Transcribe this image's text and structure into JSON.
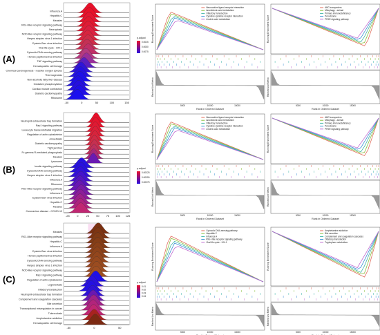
{
  "panels": [
    {
      "letter": "(A)",
      "ridge": {
        "pathways": [
          "Influenza A",
          "Hepatitis C",
          "Measles",
          "RIG-I-like receptor signaling pathway",
          "Necroptosis",
          "NOD-like receptor signaling pathway",
          "Herpes simplex virus 1 infection",
          "Epstein-Barr virus infection",
          "Viral life cycle - HIV-1",
          "Cytosolic DNA-sensing pathway",
          "Human papillomavirus infection",
          "TNF signaling pathway",
          "Hematopoietic cell lineage",
          "Chemical carcinogenesis - reactive oxygen species",
          "Thermogenesis",
          "Non-alcoholic fatty liver disease",
          "Oxidative phosphorylation",
          "Cardiac muscle contraction",
          "Diabetic cardiomyopathy",
          "Ribosome"
        ],
        "peaks": [
          28,
          26,
          25,
          23,
          22,
          24,
          20,
          21,
          18,
          22,
          14,
          16,
          8,
          -2,
          -4,
          -6,
          -12,
          -10,
          -8,
          -14
        ],
        "colors": [
          "#e8102a",
          "#e81028",
          "#e51530",
          "#e2182e",
          "#df1c35",
          "#dc2040",
          "#d7253f",
          "#cf2c48",
          "#c43055",
          "#c02f66",
          "#b43a80",
          "#9a2f9a",
          "#5a1fbf",
          "#2f15d8",
          "#2312e0",
          "#1c10e8",
          "#1f10e4",
          "#2610de",
          "#1f0fe6",
          "#1a0fee"
        ],
        "ticks": [
          "-50",
          "0",
          "50",
          "100",
          "150"
        ],
        "legend_title": "p.adjust",
        "legend_labels": [
          "0.0025",
          "0.0050",
          "0.0075"
        ]
      },
      "gsea1": {
        "legend": [
          "Neuroactive ligand-receptor interaction",
          "Arachidonic acid metabolism",
          "Olfactory transduction",
          "Cytokine-cytokine receptor interaction",
          "Linoleic acid metabolism"
        ],
        "xlabel": "Rank in Ordered Dataset",
        "ylabel": "Running Enrichment Score",
        "ylabel2": "Ranked List Metric",
        "xticks": [
          "5000",
          "10000",
          "15000"
        ]
      },
      "gsea2": {
        "legend": [
          "ABC transporters",
          "Mitophagy - animal",
          "Primary immunodeficiency",
          "Peroxisome",
          "PPAR signaling pathway"
        ],
        "xlabel": "Rank in Ordered Dataset",
        "ylabel": "Running Enrichment Score",
        "ylabel2": "Ranked List Metric",
        "xticks": [
          "5000",
          "10000",
          "15000"
        ]
      }
    },
    {
      "letter": "(B)",
      "ridge": {
        "pathways": [
          "Neutrophil extracellular trap formation",
          "Rap1 signaling pathway",
          "Leukocyte transendothelial migration",
          "Regulation of actin cytoskeleton",
          "Amoebiasis",
          "Diabetic cardiomyopathy",
          "Tight junction",
          "Fc gamma R-mediated phagocytosis",
          "Measles",
          "Lysosome",
          "Insulin signaling pathway",
          "Cytosolic DNA-sensing pathway",
          "Herpes simplex virus 1 infection",
          "Influenza A",
          "Ribosome",
          "RIG-I-like receptor signaling pathway",
          "Influenza A",
          "Epstein-Barr virus infection",
          "Hepatitis C",
          "Measles",
          "Coronavirus disease - COVID-19"
        ],
        "peaks": [
          46,
          45,
          44,
          44,
          43,
          42,
          42,
          41,
          40,
          39,
          10,
          8,
          7,
          8,
          6,
          5,
          9,
          7,
          6,
          7,
          8
        ],
        "colors": [
          "#e8102a",
          "#e5152e",
          "#e01a33",
          "#dc1f38",
          "#d8243c",
          "#d02a45",
          "#c63050",
          "#bd305e",
          "#a8287a",
          "#6a1ab2",
          "#2612e0",
          "#2810dd",
          "#3210d8",
          "#4512cc",
          "#5515c0",
          "#6817b3",
          "#7a1aa6",
          "#8c1d98",
          "#9e208b",
          "#ad237e",
          "#c02672"
        ],
        "ticks": [
          "-25",
          "0",
          "25",
          "50",
          "75",
          "100",
          "125"
        ],
        "legend_title": "p.adjust",
        "legend_labels": [
          "0.00025",
          "0.00050",
          "0.00075"
        ]
      },
      "gsea1": {
        "legend": [
          "Neuroactive ligand-receptor interaction",
          "Arachidonic acid metabolism",
          "Olfactory transduction",
          "Cytokine-cytokine receptor interaction",
          "Linoleic acid metabolism"
        ],
        "xlabel": "Rank in Ordered Dataset",
        "ylabel": "Running Enrichment Score",
        "ylabel2": "Ranked List Metric",
        "xticks": [
          "5000",
          "10000",
          "15000"
        ]
      },
      "gsea2": {
        "legend": [
          "ABC transporters",
          "Mitophagy - animal",
          "Primary immunodeficiency",
          "Peroxisome",
          "PPAR signaling pathway"
        ],
        "xlabel": "Rank in Ordered Dataset",
        "ylabel": "Running Enrichment Score",
        "ylabel2": "Ranked List Metric",
        "xticks": [
          "5000",
          "10000",
          "15000"
        ]
      }
    },
    {
      "letter": "(C)",
      "ridge": {
        "pathways": [
          "Measles",
          "RIG-I-like receptor signaling pathway",
          "Hepatitis C",
          "Influenza A",
          "Epstein-Barr virus infection",
          "Human papillomavirus infection",
          "Cytosolic DNA-sensing pathway",
          "Herpes simplex virus 1 infection",
          "NOD-like receptor signaling pathway",
          "Rap1 signaling pathway",
          "Regulation of actin cytoskeleton",
          "Legionellosis",
          "Olfactory transduction",
          "Neutrophil extracellular trap formation",
          "Complement and coagulation cascades",
          "Bile secretion",
          "Transcriptional misregulation in cancer",
          "Tuberculosis",
          "Amphetamine addiction",
          "Hematopoietic cell lineage"
        ],
        "peaks": [
          8,
          8,
          7,
          7,
          7,
          6,
          6,
          5,
          5,
          4,
          3,
          -4,
          -6,
          -3,
          -2,
          -1,
          -2,
          -1,
          0,
          2
        ],
        "colors": [
          "#7a3010",
          "#7d3512",
          "#803a14",
          "#853d16",
          "#8a4018",
          "#8e431a",
          "#93461c",
          "#97491e",
          "#9b4c20",
          "#9f4f22",
          "#1f0fe6",
          "#2a10dd",
          "#2410e2",
          "#2f12d6",
          "#6a18b0",
          "#a02288",
          "#b2247c",
          "#c02672",
          "#a8231f",
          "#7c2a12"
        ],
        "ticks": [
          "-50",
          "0",
          "50"
        ],
        "legend_title": "p.adjust",
        "legend_labels": [
          "0.01",
          "0.02",
          "0.03",
          "0.04"
        ]
      },
      "gsea1": {
        "legend": [
          "Cytosolic DNA-sensing pathway",
          "Hepatitis C",
          "Influenza A",
          "RIG-I-like receptor signaling pathway",
          "Viral life cycle - HIV-1"
        ],
        "xlabel": "Rank in Ordered Dataset",
        "ylabel": "Running Enrichment Score",
        "ylabel2": "Ranked List Metric",
        "xticks": [
          "5000",
          "10000",
          "15000"
        ]
      },
      "gsea2": {
        "legend": [
          "Amphetamine addiction",
          "Bile secretion",
          "Complement and coagulation cascades",
          "Olfactory transduction",
          "Tryptophan metabolism"
        ],
        "xlabel": "Rank in Ordered Dataset",
        "ylabel": "Running Enrichment Score",
        "ylabel2": "Ranked List Metric",
        "xticks": [
          "5000",
          "10000",
          "15000"
        ]
      }
    }
  ],
  "gsea_colors": [
    "#e06b5a",
    "#8bbf3d",
    "#3fb6a8",
    "#3b8fd6",
    "#c06bd0"
  ],
  "chart_data": [
    {
      "type": "ridge",
      "panel": "A",
      "title": "",
      "xlabel": "",
      "ylabel": "",
      "xlim": [
        -60,
        160
      ],
      "categories": [
        "Influenza A",
        "Hepatitis C",
        "Measles",
        "RIG-I-like receptor signaling pathway",
        "Necroptosis",
        "NOD-like receptor signaling pathway",
        "Herpes simplex virus 1 infection",
        "Epstein-Barr virus infection",
        "Viral life cycle - HIV-1",
        "Cytosolic DNA-sensing pathway",
        "Human papillomavirus infection",
        "TNF signaling pathway",
        "Hematopoietic cell lineage",
        "Chemical carcinogenesis - reactive oxygen species",
        "Thermogenesis",
        "Non-alcoholic fatty liver disease",
        "Oxidative phosphorylation",
        "Cardiac muscle contraction",
        "Diabetic cardiomyopathy",
        "Ribosome"
      ],
      "values": [
        28,
        26,
        25,
        23,
        22,
        24,
        20,
        21,
        18,
        22,
        14,
        16,
        8,
        -2,
        -4,
        -6,
        -12,
        -10,
        -8,
        -14
      ]
    },
    {
      "type": "ridge",
      "panel": "B",
      "title": "",
      "xlabel": "",
      "ylabel": "",
      "xlim": [
        -35,
        130
      ],
      "categories": [
        "Neutrophil extracellular trap formation",
        "Rap1 signaling pathway",
        "Leukocyte transendothelial migration",
        "Regulation of actin cytoskeleton",
        "Amoebiasis",
        "Diabetic cardiomyopathy",
        "Tight junction",
        "Fc gamma R-mediated phagocytosis",
        "Measles",
        "Lysosome",
        "Insulin signaling pathway",
        "Cytosolic DNA-sensing pathway",
        "Herpes simplex virus 1 infection",
        "Influenza A",
        "Ribosome",
        "RIG-I-like receptor signaling pathway",
        "Influenza A",
        "Epstein-Barr virus infection",
        "Hepatitis C",
        "Measles",
        "Coronavirus disease - COVID-19"
      ],
      "values": [
        46,
        45,
        44,
        44,
        43,
        42,
        42,
        41,
        40,
        39,
        10,
        8,
        7,
        8,
        6,
        5,
        9,
        7,
        6,
        7,
        8
      ]
    },
    {
      "type": "ridge",
      "panel": "C",
      "title": "",
      "xlabel": "",
      "ylabel": "",
      "xlim": [
        -60,
        70
      ],
      "categories": [
        "Measles",
        "RIG-I-like receptor signaling pathway",
        "Hepatitis C",
        "Influenza A",
        "Epstein-Barr virus infection",
        "Human papillomavirus infection",
        "Cytosolic DNA-sensing pathway",
        "Herpes simplex virus 1 infection",
        "NOD-like receptor signaling pathway",
        "Rap1 signaling pathway",
        "Regulation of actin cytoskeleton",
        "Legionellosis",
        "Olfactory transduction",
        "Neutrophil extracellular trap formation",
        "Complement and coagulation cascades",
        "Bile secretion",
        "Transcriptional misregulation in cancer",
        "Tuberculosis",
        "Amphetamine addiction",
        "Hematopoietic cell lineage"
      ],
      "values": [
        8,
        8,
        7,
        7,
        7,
        6,
        6,
        5,
        5,
        4,
        3,
        -4,
        -6,
        -3,
        -2,
        -1,
        -2,
        -1,
        0,
        2
      ]
    },
    {
      "type": "line",
      "panel": "A-up",
      "x": [
        0,
        5000,
        10000,
        15000,
        20000
      ],
      "ylabel": "Running Enrichment Score",
      "xlabel": "Rank in Ordered Dataset",
      "series": [
        {
          "name": "Neuroactive ligand-receptor interaction",
          "values": [
            0,
            0.5,
            0.35,
            0.18,
            0
          ]
        },
        {
          "name": "Arachidonic acid metabolism",
          "values": [
            0,
            0.55,
            0.4,
            0.2,
            0
          ]
        },
        {
          "name": "Olfactory transduction",
          "values": [
            0,
            0.6,
            0.42,
            0.22,
            0
          ]
        },
        {
          "name": "Cytokine-cytokine receptor interaction",
          "values": [
            0,
            0.52,
            0.38,
            0.19,
            0
          ]
        },
        {
          "name": "Linoleic acid metabolism",
          "values": [
            0,
            0.48,
            0.33,
            0.16,
            0
          ]
        }
      ]
    },
    {
      "type": "line",
      "panel": "A-down",
      "x": [
        0,
        5000,
        10000,
        15000,
        20000
      ],
      "ylabel": "Running Enrichment Score",
      "xlabel": "Rank in Ordered Dataset",
      "series": [
        {
          "name": "ABC transporters",
          "values": [
            0,
            -0.15,
            -0.3,
            -0.55,
            0
          ]
        },
        {
          "name": "Mitophagy - animal",
          "values": [
            0,
            -0.14,
            -0.28,
            -0.5,
            0
          ]
        },
        {
          "name": "Primary immunodeficiency",
          "values": [
            0,
            -0.13,
            -0.27,
            -0.48,
            0
          ]
        },
        {
          "name": "Peroxisome",
          "values": [
            0,
            -0.16,
            -0.32,
            -0.58,
            0
          ]
        },
        {
          "name": "PPAR signaling pathway",
          "values": [
            0,
            -0.12,
            -0.26,
            -0.46,
            0
          ]
        }
      ]
    }
  ]
}
